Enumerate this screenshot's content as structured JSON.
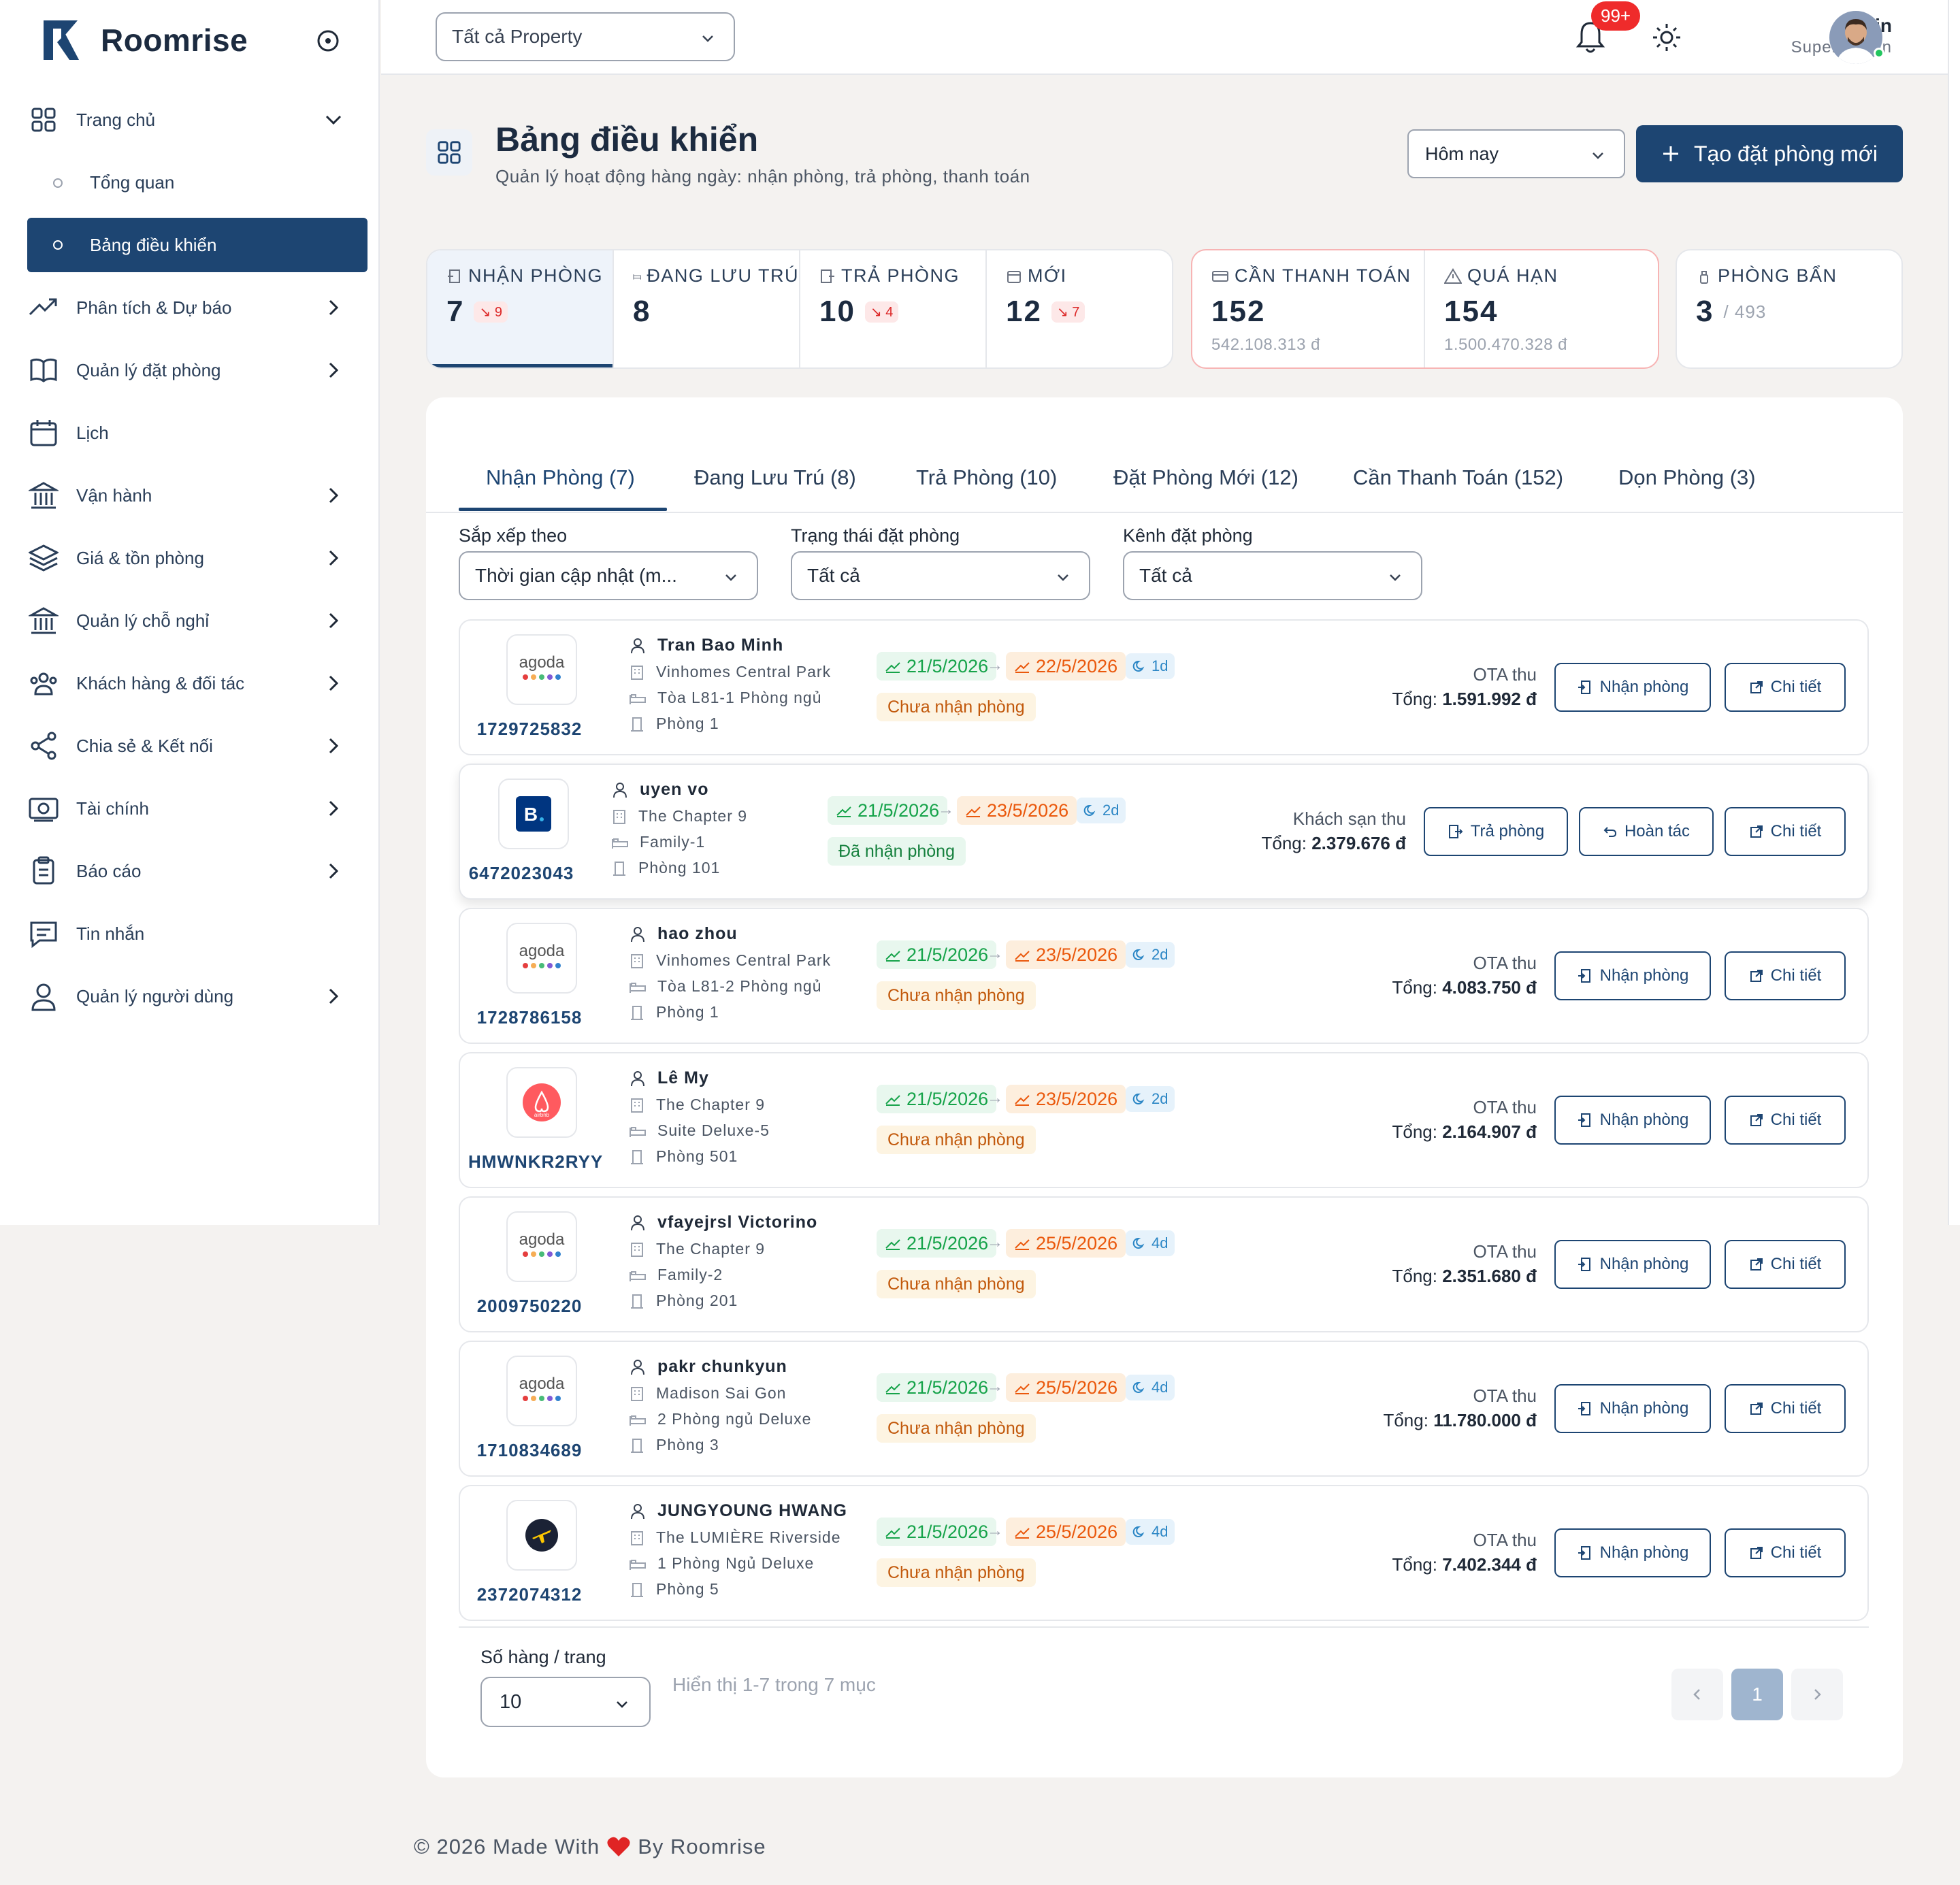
{
  "app": {
    "brand": "Roomrise"
  },
  "sidebar": {
    "items": [
      {
        "label": "Trang chủ",
        "icon": "grid-icon",
        "chevron": "down"
      },
      {
        "label": "Tổng quan",
        "sub": true
      },
      {
        "label": "Bảng điều khiển",
        "sub": true,
        "active": true
      },
      {
        "label": "Phân tích & Dự báo",
        "icon": "trend-up-icon",
        "chevron": "right"
      },
      {
        "label": "Quản lý đặt phòng",
        "icon": "book-icon",
        "chevron": "right"
      },
      {
        "label": "Lịch",
        "icon": "calendar-icon"
      },
      {
        "label": "Vận hành",
        "icon": "building-icon",
        "chevron": "right"
      },
      {
        "label": "Giá & tồn phòng",
        "icon": "layers-icon",
        "chevron": "right"
      },
      {
        "label": "Quản lý chỗ nghỉ",
        "icon": "building-icon",
        "chevron": "right"
      },
      {
        "label": "Khách hàng & đối tác",
        "icon": "users-icon",
        "chevron": "right"
      },
      {
        "label": "Chia sẻ & Kết nối",
        "icon": "share-icon",
        "chevron": "right"
      },
      {
        "label": "Tài chính",
        "icon": "money-icon",
        "chevron": "right"
      },
      {
        "label": "Báo cáo",
        "icon": "clipboard-icon",
        "chevron": "right"
      },
      {
        "label": "Tin nhắn",
        "icon": "message-icon"
      },
      {
        "label": "Quản lý người dùng",
        "icon": "user-icon",
        "chevron": "right"
      }
    ]
  },
  "topbar": {
    "property_select": "Tất cả Property",
    "notification_count": "99+",
    "user_name": "Admin",
    "user_role": "Super Admin"
  },
  "header": {
    "title": "Bảng điều khiển",
    "subtitle": "Quản lý hoạt động hàng ngày: nhận phòng, trả phòng, thanh toán",
    "date_filter": "Hôm nay",
    "new_booking_button": "Tạo đặt phòng mới"
  },
  "stats": {
    "checkin": {
      "label": "NHẬN PHÒNG",
      "value": "7",
      "delta": "9"
    },
    "staying": {
      "label": "ĐANG LƯU TRÚ",
      "value": "8"
    },
    "checkout": {
      "label": "TRẢ PHÒNG",
      "value": "10",
      "delta": "4"
    },
    "new": {
      "label": "MỚI",
      "value": "12",
      "delta": "7"
    },
    "payment_due": {
      "label": "CẦN THANH TOÁN",
      "value": "152",
      "amount": "542.108.313 đ"
    },
    "overdue": {
      "label": "QUÁ HẠN",
      "value": "154",
      "amount": "1.500.470.328 đ"
    },
    "dirty": {
      "label": "PHÒNG BẨN",
      "value": "3",
      "total": "/ 493"
    }
  },
  "tabs": [
    "Nhận Phòng (7)",
    "Đang Lưu Trú (8)",
    "Trả Phòng (10)",
    "Đặt Phòng Mới (12)",
    "Cần Thanh Toán (152)",
    "Dọn Phòng (3)"
  ],
  "filters": {
    "sort": {
      "label": "Sắp xếp theo",
      "value": "Thời gian cập nhật (m..."
    },
    "status": {
      "label": "Trạng thái đặt phòng",
      "value": "Tất cả"
    },
    "channel": {
      "label": "Kênh đặt phòng",
      "value": "Tất cả"
    }
  },
  "bookings": [
    {
      "channel": "agoda",
      "code": "1729725832",
      "guest": "Tran Bao Minh",
      "property": "Vinhomes Central Park",
      "room_type": "Tòa L81-1 Phòng ngủ",
      "room": "Phòng 1",
      "checkin": "21/5/2026",
      "checkout": "22/5/2026",
      "nights": "1d",
      "status": "Chưa nhận phòng",
      "collector": "OTA thu",
      "total_label": "Tổng:",
      "total": "1.591.992 đ",
      "actions": [
        "Nhận phòng",
        "Chi tiết"
      ]
    },
    {
      "channel": "booking",
      "code": "6472023043",
      "guest": "uyen vo",
      "property": "The Chapter 9",
      "room_type": "Family-1",
      "room": "Phòng 101",
      "checkin": "21/5/2026",
      "checkout": "23/5/2026",
      "nights": "2d",
      "status": "Đã nhận phòng",
      "collector": "Khách sạn thu",
      "total_label": "Tổng:",
      "total": "2.379.676 đ",
      "actions": [
        "Trả phòng",
        "Hoàn tác",
        "Chi tiết"
      ]
    },
    {
      "channel": "agoda",
      "code": "1728786158",
      "guest": "hao zhou",
      "property": "Vinhomes Central Park",
      "room_type": "Tòa L81-2 Phòng ngủ",
      "room": "Phòng 1",
      "checkin": "21/5/2026",
      "checkout": "23/5/2026",
      "nights": "2d",
      "status": "Chưa nhận phòng",
      "collector": "OTA thu",
      "total_label": "Tổng:",
      "total": "4.083.750 đ",
      "actions": [
        "Nhận phòng",
        "Chi tiết"
      ]
    },
    {
      "channel": "airbnb",
      "code": "HMWNKR2RYY",
      "guest": "Lê My",
      "property": "The Chapter 9",
      "room_type": "Suite Deluxe-5",
      "room": "Phòng 501",
      "checkin": "21/5/2026",
      "checkout": "23/5/2026",
      "nights": "2d",
      "status": "Chưa nhận phòng",
      "collector": "OTA thu",
      "total_label": "Tổng:",
      "total": "2.164.907 đ",
      "actions": [
        "Nhận phòng",
        "Chi tiết"
      ]
    },
    {
      "channel": "agoda",
      "code": "2009750220",
      "guest": "vfayejrsl Victorino",
      "property": "The Chapter 9",
      "room_type": "Family-2",
      "room": "Phòng 201",
      "checkin": "21/5/2026",
      "checkout": "25/5/2026",
      "nights": "4d",
      "status": "Chưa nhận phòng",
      "collector": "OTA thu",
      "total_label": "Tổng:",
      "total": "2.351.680 đ",
      "actions": [
        "Nhận phòng",
        "Chi tiết"
      ]
    },
    {
      "channel": "agoda",
      "code": "1710834689",
      "guest": "pakr chunkyun",
      "property": "Madison Sai Gon",
      "room_type": "2 Phòng ngủ Deluxe",
      "room": "Phòng 3",
      "checkin": "21/5/2026",
      "checkout": "25/5/2026",
      "nights": "4d",
      "status": "Chưa nhận phòng",
      "collector": "OTA thu",
      "total_label": "Tổng:",
      "total": "11.780.000 đ",
      "actions": [
        "Nhận phòng",
        "Chi tiết"
      ]
    },
    {
      "channel": "expedia",
      "code": "2372074312",
      "guest": "JUNGYOUNG HWANG",
      "property": "The LUMIÈRE Riverside",
      "room_type": "1 Phòng Ngủ Deluxe",
      "room": "Phòng 5",
      "checkin": "21/5/2026",
      "checkout": "25/5/2026",
      "nights": "4d",
      "status": "Chưa nhận phòng",
      "collector": "OTA thu",
      "total_label": "Tổng:",
      "total": "7.402.344 đ",
      "actions": [
        "Nhận phòng",
        "Chi tiết"
      ]
    }
  ],
  "pagination": {
    "rows_label": "Số hàng / trang",
    "rows_value": "10",
    "info": "Hiển thị 1-7 trong 7 mục",
    "current_page": "1"
  },
  "footer": {
    "before": "© 2026 Made With",
    "after": "By Roomrise"
  },
  "colors": {
    "primary": "#1d4572",
    "danger": "#ef2b2b",
    "checkin": "#16a34a",
    "checkout": "#ea580c"
  }
}
